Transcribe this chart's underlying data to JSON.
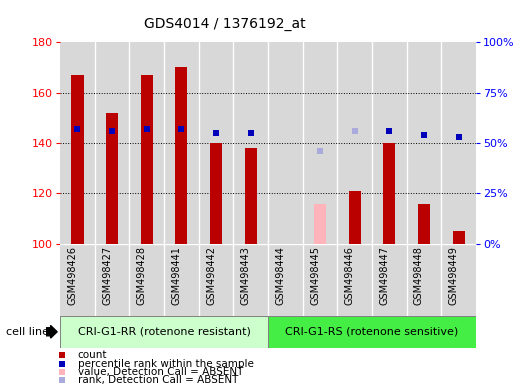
{
  "title": "GDS4014 / 1376192_at",
  "samples": [
    "GSM498426",
    "GSM498427",
    "GSM498428",
    "GSM498441",
    "GSM498442",
    "GSM498443",
    "GSM498444",
    "GSM498445",
    "GSM498446",
    "GSM498447",
    "GSM498448",
    "GSM498449"
  ],
  "counts": [
    167,
    152,
    167,
    170,
    140,
    138,
    100,
    116,
    121,
    140,
    116,
    105
  ],
  "percentile_ranks": [
    57,
    56,
    57,
    57,
    55,
    55,
    null,
    46,
    56,
    56,
    54,
    53
  ],
  "count_absent": [
    false,
    false,
    false,
    false,
    false,
    false,
    true,
    true,
    false,
    false,
    false,
    false
  ],
  "rank_absent": [
    false,
    false,
    false,
    false,
    false,
    false,
    false,
    true,
    true,
    false,
    false,
    false
  ],
  "ylim_left": [
    100,
    180
  ],
  "ylim_right": [
    0,
    100
  ],
  "yticks_left": [
    100,
    120,
    140,
    160,
    180
  ],
  "yticks_right": [
    0,
    25,
    50,
    75,
    100
  ],
  "ytick_labels_right": [
    "0%",
    "25%",
    "50%",
    "75%",
    "100%"
  ],
  "group1_label": "CRI-G1-RR (rotenone resistant)",
  "group2_label": "CRI-G1-RS (rotenone sensitive)",
  "group1_count": 6,
  "group2_count": 6,
  "bar_color_normal": "#bb0000",
  "bar_color_absent": "#ffb3ba",
  "dot_color_normal": "#0000bb",
  "dot_color_absent": "#aaaadd",
  "group1_bg": "#ccffcc",
  "group2_bg": "#44ee44",
  "cell_line_label": "cell line",
  "legend_items": [
    "count",
    "percentile rank within the sample",
    "value, Detection Call = ABSENT",
    "rank, Detection Call = ABSENT"
  ],
  "legend_colors": [
    "#bb0000",
    "#0000bb",
    "#ffb3ba",
    "#aaaadd"
  ],
  "col_bg": "#d8d8d8",
  "col_border": "#ffffff",
  "grid_color": "#000000",
  "title_fontsize": 10,
  "axis_fontsize": 8,
  "label_fontsize": 7,
  "legend_fontsize": 7.5
}
